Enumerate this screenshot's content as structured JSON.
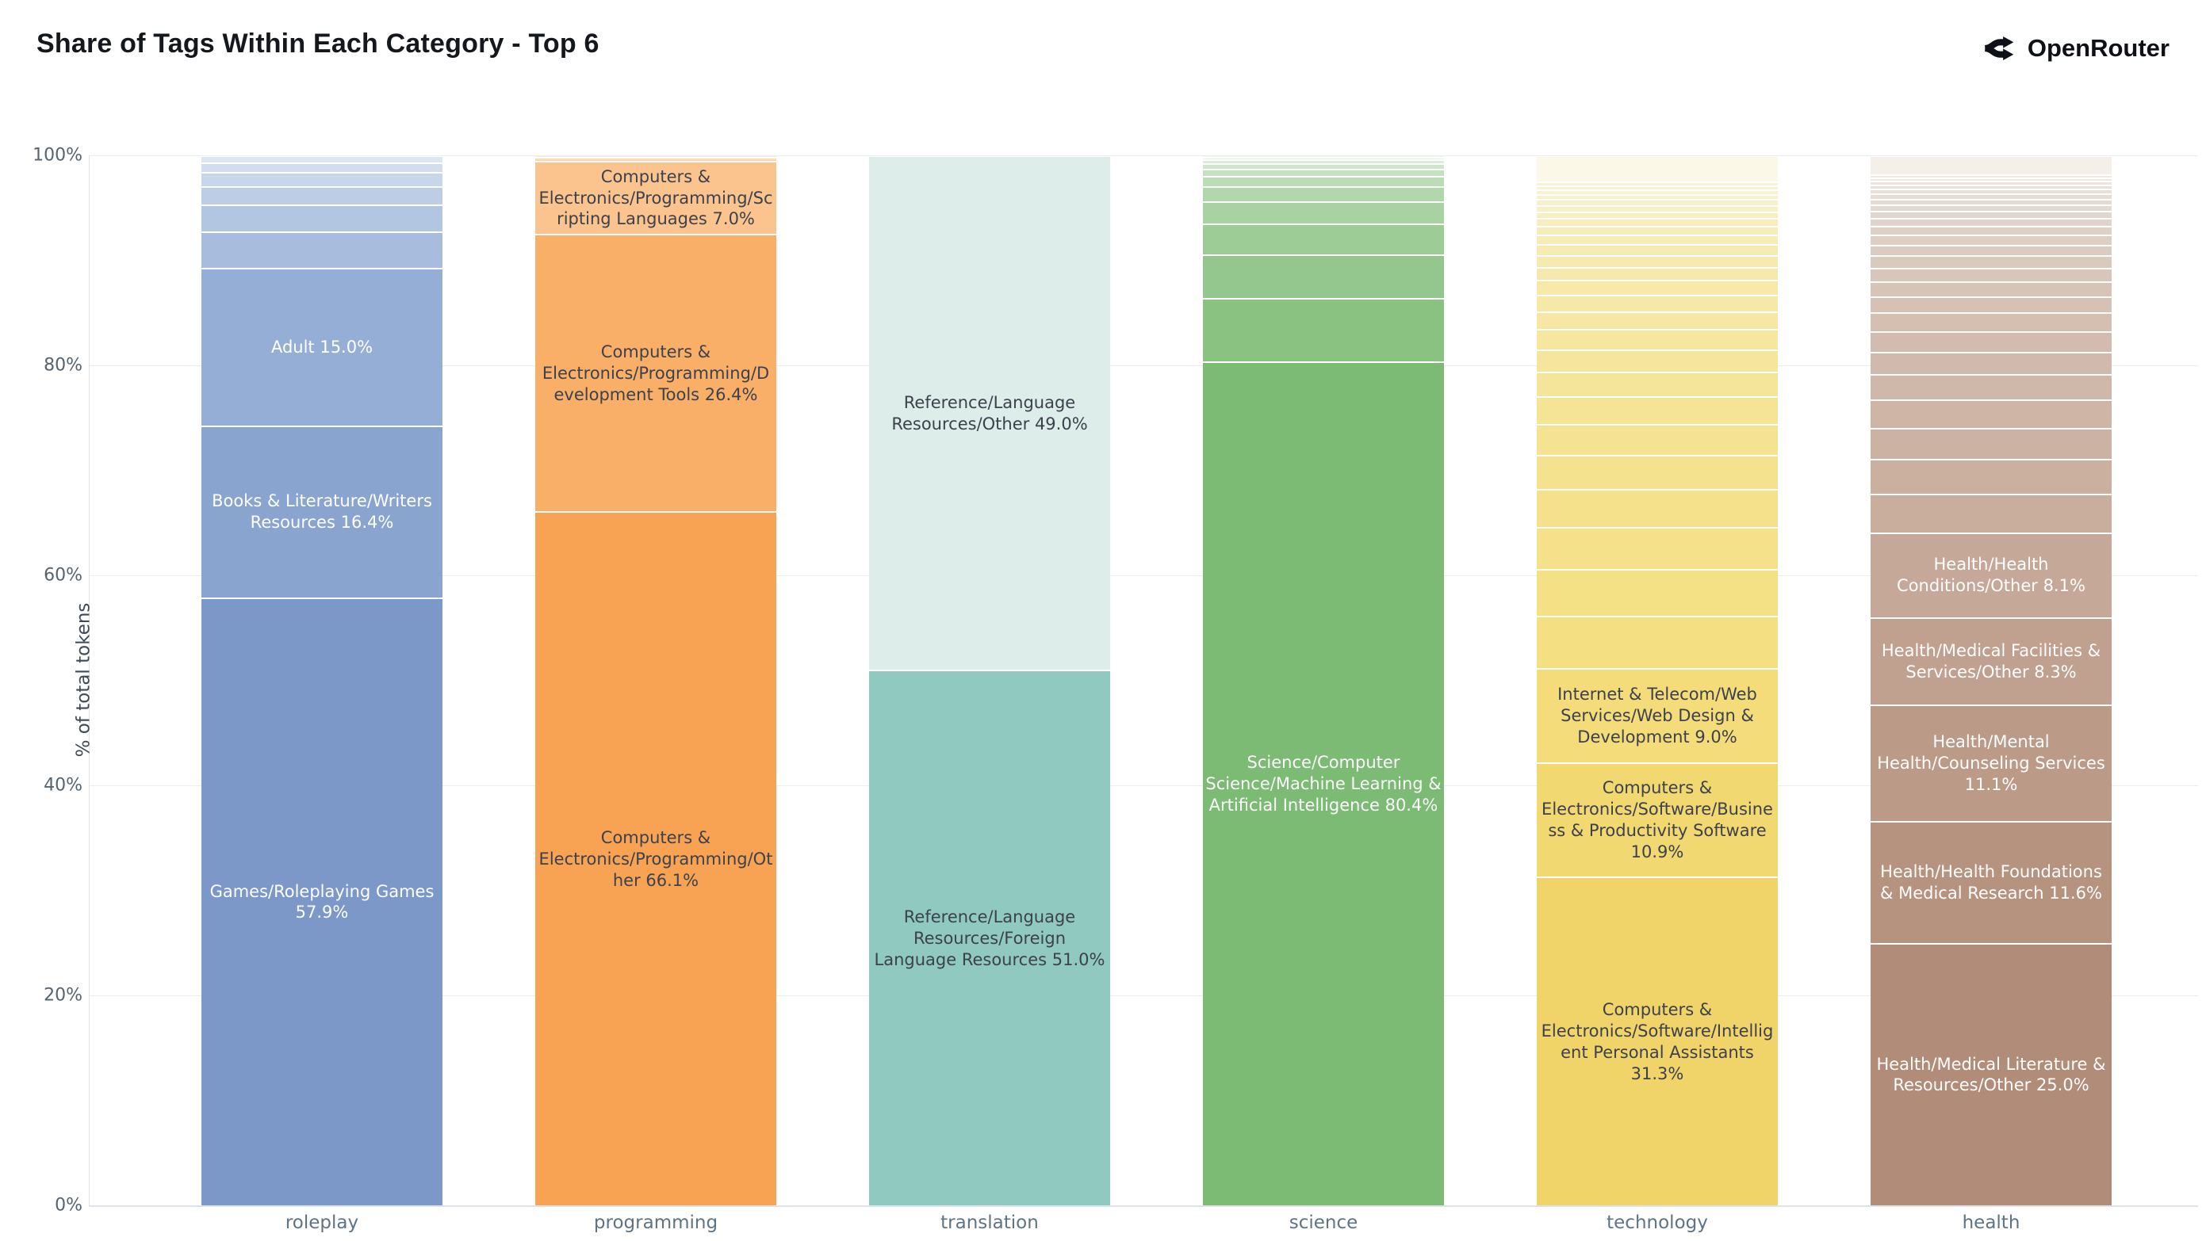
{
  "title": "Share of Tags Within Each Category - Top 6",
  "brand": {
    "name": "OpenRouter"
  },
  "y_axis": {
    "title": "% of total tokens",
    "ticks": [
      {
        "label": "0%",
        "value": 0
      },
      {
        "label": "20%",
        "value": 20
      },
      {
        "label": "40%",
        "value": 40
      },
      {
        "label": "60%",
        "value": 60
      },
      {
        "label": "80%",
        "value": 80
      },
      {
        "label": "100%",
        "value": 100
      }
    ]
  },
  "chart_data": {
    "type": "bar",
    "stacked": true,
    "title": "Share of Tags Within Each Category - Top 6",
    "xlabel": "",
    "ylabel": "% of total tokens",
    "ylim": [
      0,
      100
    ],
    "grid": true,
    "legend": "none",
    "categories": [
      "roleplay",
      "programming",
      "translation",
      "science",
      "technology",
      "health"
    ],
    "bars": [
      {
        "category": "roleplay",
        "label_color": "#ffffff",
        "segments": [
          {
            "label": "Games/Roleplaying Games 57.9%",
            "value": 57.9,
            "color": "#7b98c8"
          },
          {
            "label": "Books & Literature/Writers Resources 16.4%",
            "value": 16.4,
            "color": "#89a4cf"
          },
          {
            "label": "Adult 15.0%",
            "value": 15.0,
            "color": "#95aed6"
          }
        ],
        "unlabeled": {
          "total": 10.7,
          "count": 6,
          "ratio": 0.72,
          "start_color": "#a8bddd",
          "end_color": "#dce6f2",
          "cap": 0,
          "cap_color": "#e8eef7"
        }
      },
      {
        "category": "programming",
        "label_color": "#3c414c",
        "segments": [
          {
            "label": "Computers & Electronics/Programming/Other 66.1%",
            "value": 66.1,
            "color": "#f8a254"
          },
          {
            "label": "Computers & Electronics/Programming/Development Tools 26.4%",
            "value": 26.4,
            "color": "#f9af67"
          },
          {
            "label": "Computers & Electronics/Programming/Scripting Languages 7.0%",
            "value": 7.0,
            "color": "#fbc38d"
          }
        ],
        "unlabeled": {
          "total": 0.5,
          "count": 2,
          "ratio": 0.6,
          "start_color": "#fdd9b5",
          "end_color": "#fee9d6",
          "cap": 0,
          "cap_color": "#fef3e7"
        }
      },
      {
        "category": "translation",
        "label_color": "#3c414c",
        "segments": [
          {
            "label": "Reference/Language Resources/Foreign Language Resources 51.0%",
            "value": 51.0,
            "color": "#90c9c0"
          },
          {
            "label": "Reference/Language Resources/Other 49.0%",
            "value": 49.0,
            "color": "#dcedea"
          }
        ],
        "unlabeled": {
          "total": 0,
          "count": 0,
          "ratio": 0.7,
          "start_color": "#dcedea",
          "end_color": "#eff7f5",
          "cap": 0,
          "cap_color": "#eff7f5"
        }
      },
      {
        "category": "science",
        "label_color": "#ffffff",
        "segments": [
          {
            "label": "Science/Computer Science/Machine Learning & Artificial Intelligence 80.4%",
            "value": 80.4,
            "color": "#7cbb74"
          }
        ],
        "unlabeled": {
          "total": 19.6,
          "count": 11,
          "ratio": 0.7,
          "start_color": "#8ac282",
          "end_color": "#eef6ec",
          "cap": 0,
          "cap_color": "#f4faf3"
        }
      },
      {
        "category": "technology",
        "label_color": "#3c414c",
        "segments": [
          {
            "label": "Computers & Electronics/Software/Intelligent Personal Assistants 31.3%",
            "value": 31.3,
            "color": "#f0d469"
          },
          {
            "label": "Computers & Electronics/Software/Business & Productivity Software 10.9%",
            "value": 10.9,
            "color": "#f2d871"
          },
          {
            "label": "Internet & Telecom/Web Services/Web Design & Development 9.0%",
            "value": 9.0,
            "color": "#f3dc79"
          }
        ],
        "unlabeled": {
          "total": 46.3,
          "count": 26,
          "ratio": 0.9,
          "start_color": "#f4df82",
          "end_color": "#f9f3d6",
          "cap": 2.5,
          "cap_color": "#fbf8e8"
        }
      },
      {
        "category": "health",
        "label_color": "#ffffff",
        "segments": [
          {
            "label": "Health/Medical Literature & Resources/Other 25.0%",
            "value": 25.0,
            "color": "#b18c78"
          },
          {
            "label": "Health/Health Foundations & Medical Research 11.6%",
            "value": 11.6,
            "color": "#b5937e"
          },
          {
            "label": "Health/Mental Health/Counseling Services 11.1%",
            "value": 11.1,
            "color": "#bb9a88"
          },
          {
            "label": "Health/Medical Facilities & Services/Other 8.3%",
            "value": 8.3,
            "color": "#c0a190"
          },
          {
            "label": "Health/Health Conditions/Other 8.1%",
            "value": 8.1,
            "color": "#c5a897"
          }
        ],
        "unlabeled": {
          "total": 34.1,
          "count": 25,
          "ratio": 0.9,
          "start_color": "#c9ad9d",
          "end_color": "#efe9e3",
          "cap": 1.8,
          "cap_color": "#f4efe9"
        }
      }
    ]
  }
}
